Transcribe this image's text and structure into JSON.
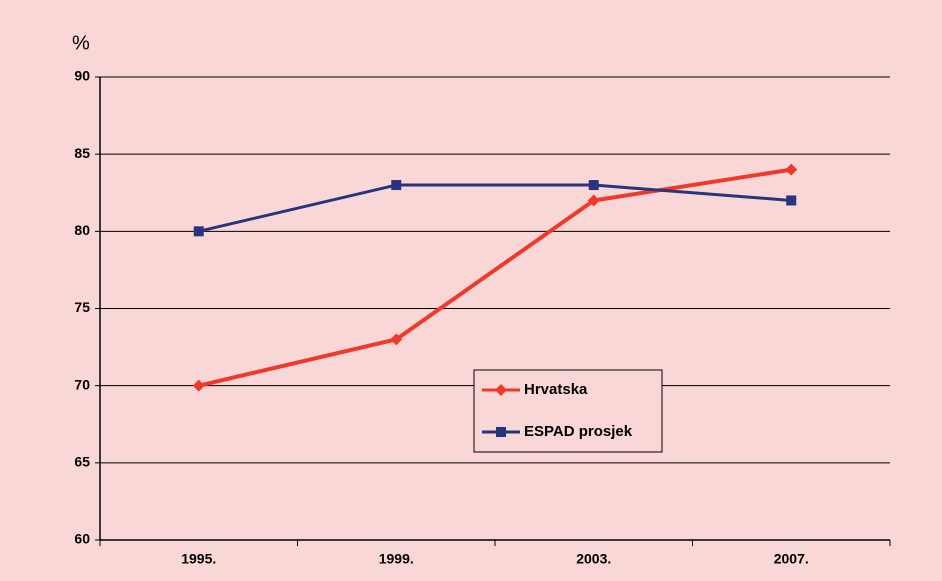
{
  "chart_data": {
    "type": "line",
    "ylabel": "%",
    "categories": [
      "1995.",
      "1999.",
      "2003.",
      "2007."
    ],
    "series": [
      {
        "name": "Hrvatska",
        "color": "#f0392b",
        "marker": "diamond",
        "values": [
          70,
          73,
          82,
          84
        ]
      },
      {
        "name": "ESPAD prosjek",
        "color": "#27357e",
        "marker": "square",
        "values": [
          80,
          83,
          83,
          82
        ]
      }
    ],
    "ylim": [
      60,
      90
    ],
    "yticks": [
      60,
      65,
      70,
      75,
      80,
      85,
      90
    ],
    "grid": true,
    "legend": "center"
  }
}
